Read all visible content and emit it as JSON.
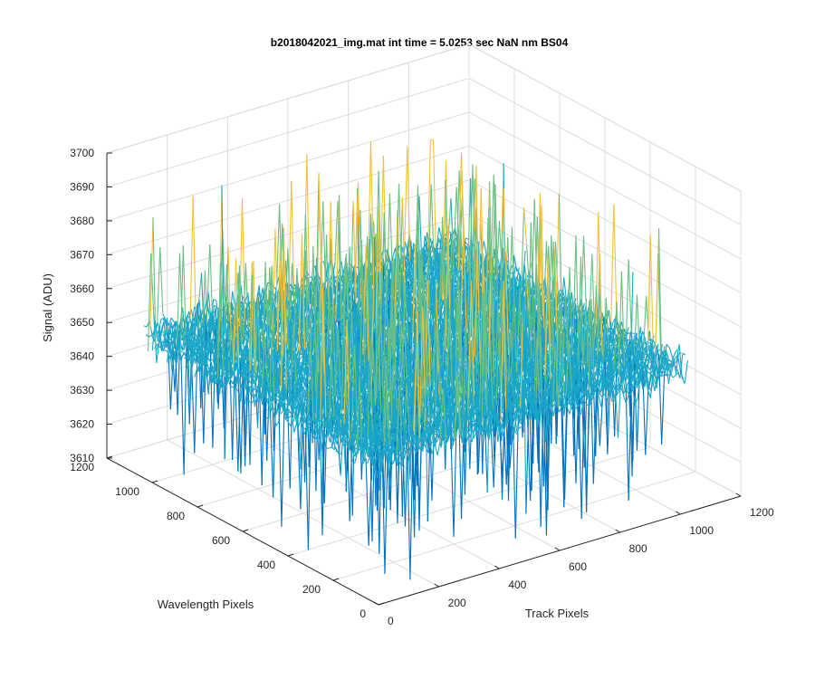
{
  "chart_data": {
    "type": "surface3d",
    "title": "b2018042021_img.mat int time = 5.0253 sec  NaN nm BS04",
    "xlabel": "Track Pixels",
    "ylabel": "Wavelength Pixels",
    "zlabel": "Signal (ADU)",
    "xlim": [
      0,
      1200
    ],
    "ylim": [
      0,
      1200
    ],
    "zlim": [
      3610,
      3700
    ],
    "x_ticks": [
      "0",
      "200",
      "400",
      "600",
      "800",
      "1000",
      "1200"
    ],
    "y_ticks": [
      "0",
      "200",
      "400",
      "600",
      "800",
      "1000",
      "1200"
    ],
    "z_ticks": [
      "3610",
      "3620",
      "3630",
      "3640",
      "3650",
      "3660",
      "3670",
      "3680",
      "3690",
      "3700"
    ],
    "grid": true,
    "colormap": "parula",
    "noise_mean": 3653,
    "noise_range": [
      3612,
      3697
    ],
    "data_extent": {
      "x": [
        0,
        1024
      ],
      "y": [
        0,
        1024
      ]
    },
    "colors": {
      "low": "#0072bd",
      "mid1": "#1aa6c8",
      "mid2": "#6bbf85",
      "high": "#f2c13a"
    }
  }
}
